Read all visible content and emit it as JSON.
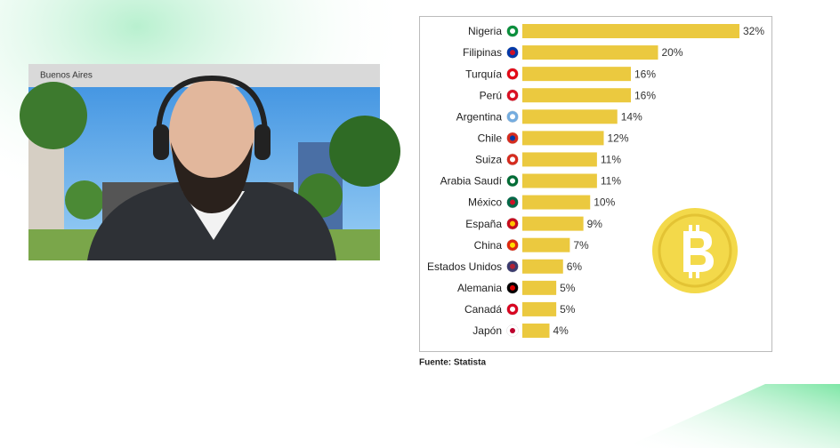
{
  "video_label": "Buenos Aires",
  "chart_data": {
    "type": "bar",
    "orientation": "horizontal",
    "categories": [
      "Nigeria",
      "Filipinas",
      "Turquía",
      "Perú",
      "Argentina",
      "Chile",
      "Suiza",
      "Arabia Saudí",
      "México",
      "España",
      "China",
      "Estados Unidos",
      "Alemania",
      "Canadá",
      "Japón"
    ],
    "values": [
      32,
      20,
      16,
      16,
      14,
      12,
      11,
      11,
      10,
      9,
      7,
      6,
      5,
      5,
      4
    ],
    "value_labels": [
      "32%",
      "20%",
      "16%",
      "16%",
      "14%",
      "12%",
      "11%",
      "11%",
      "10%",
      "9%",
      "7%",
      "6%",
      "5%",
      "5%",
      "4%"
    ],
    "color": "#ebc93f",
    "source": "Fuente: Statista"
  }
}
